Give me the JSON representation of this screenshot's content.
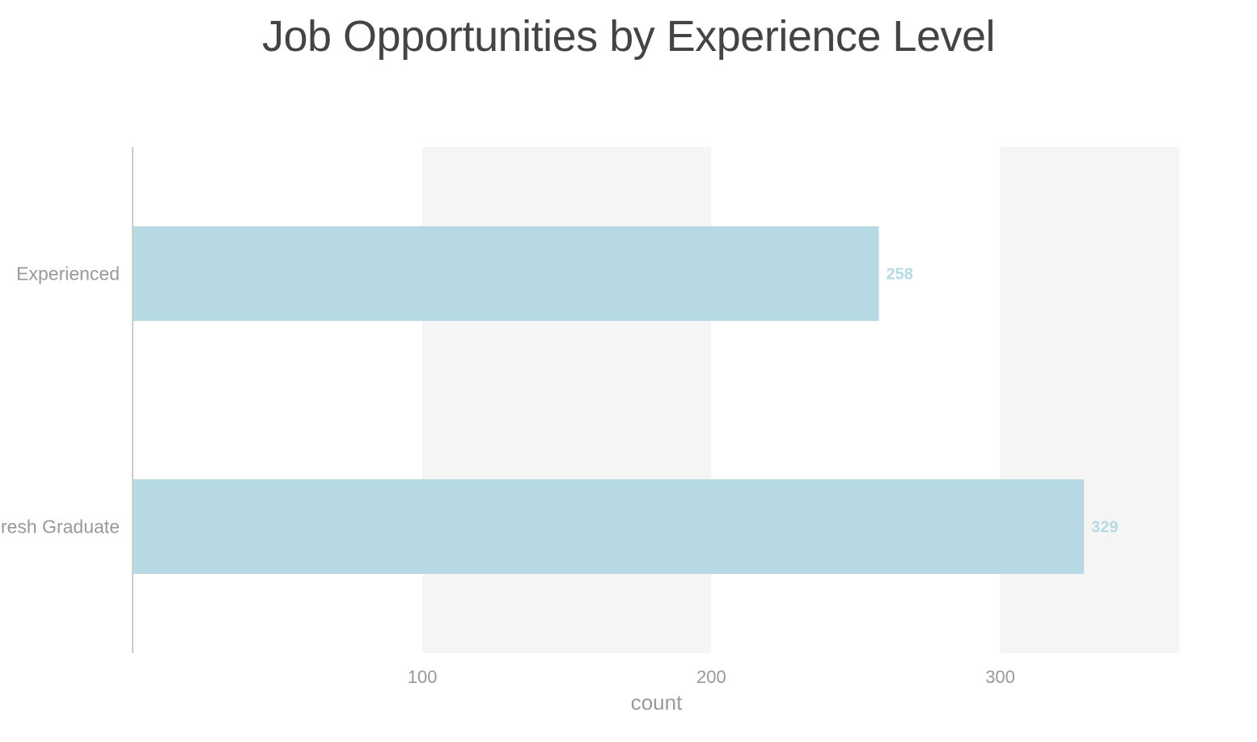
{
  "chart_data": {
    "type": "bar",
    "orientation": "horizontal",
    "title": "Job Opportunities by Experience Level",
    "xlabel": "count",
    "ylabel": "",
    "categories": [
      "Experienced",
      "Fresh Graduate"
    ],
    "values": [
      258,
      329
    ],
    "data_labels": [
      "258",
      "329"
    ],
    "xlim": [
      0,
      362
    ],
    "xticks": [
      100,
      200,
      300
    ],
    "xtick_labels": [
      "100",
      "200",
      "300"
    ],
    "grid": "alternating vertical bands",
    "legend": "none",
    "colors": {
      "bar": "#b7d9e4",
      "data_label": "#b7d9e4",
      "band": "#f5f5f5",
      "title": "#444444",
      "axis_text": "#999999"
    }
  }
}
